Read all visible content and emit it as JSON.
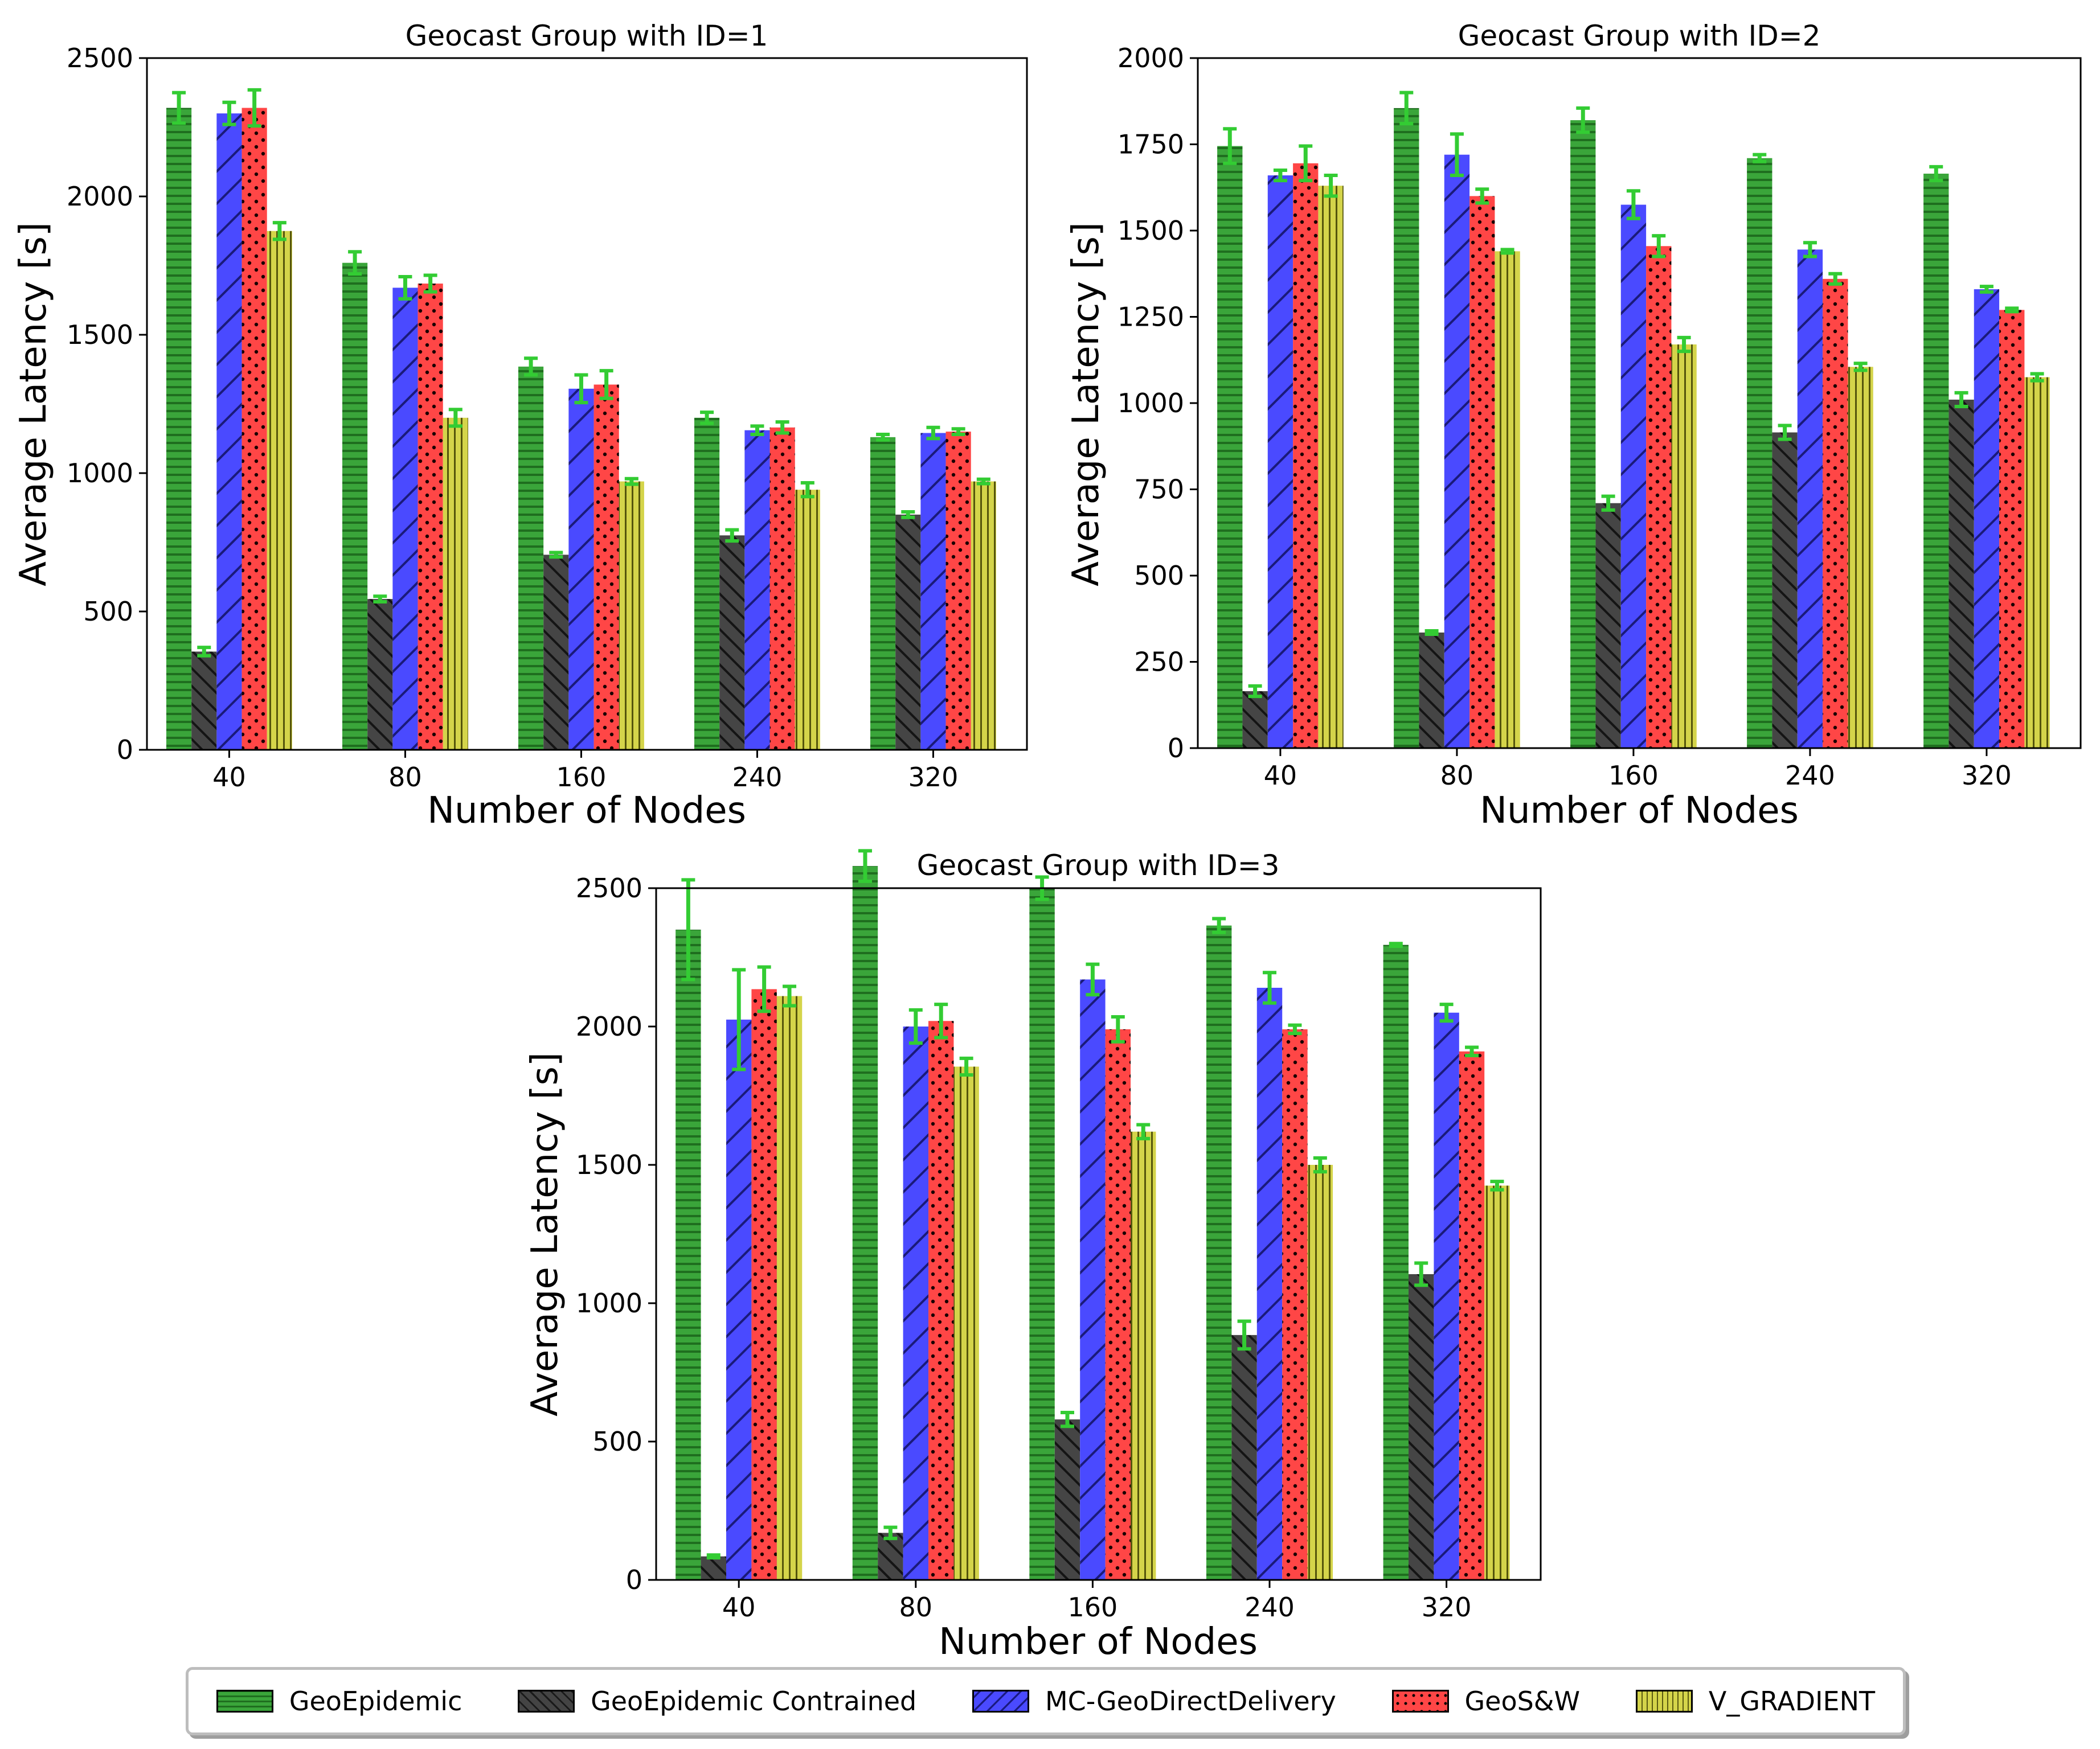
{
  "legend": {
    "items": [
      {
        "label": "GeoEpidemic",
        "color": "#3aa53a"
      },
      {
        "label": "GeoEpidemic Contrained",
        "color": "#444444"
      },
      {
        "label": "MC-GeoDirectDelivery",
        "color": "#4a4aff"
      },
      {
        "label": "GeoS&W",
        "color": "#ff4646"
      },
      {
        "label": "V_GRADIENT",
        "color": "#d4d44a"
      }
    ]
  },
  "chart_data": [
    {
      "type": "bar",
      "title": "Geocast Group with ID=1",
      "xlabel": "Number of Nodes",
      "ylabel": "Average Latency [s]",
      "categories": [
        "40",
        "80",
        "160",
        "240",
        "320"
      ],
      "ylim": [
        0,
        2500
      ],
      "yticks": [
        "0",
        "500",
        "1000",
        "1500",
        "2000",
        "2500"
      ],
      "series": [
        {
          "name": "GeoEpidemic",
          "values": [
            2320,
            1760,
            1385,
            1200,
            1130
          ],
          "errors": [
            55,
            40,
            30,
            20,
            10
          ]
        },
        {
          "name": "GeoEpidemic Contrained",
          "values": [
            355,
            545,
            705,
            775,
            850
          ],
          "errors": [
            15,
            10,
            8,
            20,
            10
          ]
        },
        {
          "name": "MC-GeoDirectDelivery",
          "values": [
            2300,
            1670,
            1305,
            1155,
            1145
          ],
          "errors": [
            40,
            40,
            50,
            15,
            20
          ]
        },
        {
          "name": "GeoS&W",
          "values": [
            2320,
            1685,
            1320,
            1165,
            1150
          ],
          "errors": [
            65,
            30,
            50,
            20,
            10
          ]
        },
        {
          "name": "V_GRADIENT",
          "values": [
            1875,
            1200,
            970,
            940,
            970
          ],
          "errors": [
            30,
            30,
            10,
            25,
            8
          ]
        }
      ]
    },
    {
      "type": "bar",
      "title": "Geocast Group with ID=2",
      "xlabel": "Number of Nodes",
      "ylabel": "Average Latency [s]",
      "categories": [
        "40",
        "80",
        "160",
        "240",
        "320"
      ],
      "ylim": [
        0,
        2000
      ],
      "yticks": [
        "0",
        "250",
        "500",
        "750",
        "1000",
        "1250",
        "1500",
        "1750",
        "2000"
      ],
      "series": [
        {
          "name": "GeoEpidemic",
          "values": [
            1745,
            1855,
            1820,
            1710,
            1665
          ],
          "errors": [
            50,
            45,
            35,
            10,
            20
          ]
        },
        {
          "name": "GeoEpidemic Contrained",
          "values": [
            165,
            335,
            710,
            915,
            1010
          ],
          "errors": [
            15,
            5,
            20,
            20,
            20
          ]
        },
        {
          "name": "MC-GeoDirectDelivery",
          "values": [
            1660,
            1720,
            1575,
            1445,
            1330
          ],
          "errors": [
            15,
            60,
            40,
            20,
            8
          ]
        },
        {
          "name": "GeoS&W",
          "values": [
            1695,
            1600,
            1455,
            1360,
            1270
          ],
          "errors": [
            50,
            20,
            30,
            15,
            5
          ]
        },
        {
          "name": "V_GRADIENT",
          "values": [
            1630,
            1440,
            1170,
            1105,
            1075
          ],
          "errors": [
            30,
            5,
            20,
            10,
            10
          ]
        }
      ]
    },
    {
      "type": "bar",
      "title": "Geocast Group with ID=3",
      "xlabel": "Number of Nodes",
      "ylabel": "Average Latency [s]",
      "categories": [
        "40",
        "80",
        "160",
        "240",
        "320"
      ],
      "ylim": [
        0,
        2500
      ],
      "yticks": [
        "0",
        "500",
        "1000",
        "1500",
        "2000",
        "2500"
      ],
      "series": [
        {
          "name": "GeoEpidemic",
          "values": [
            2350,
            2580,
            2500,
            2365,
            2295
          ],
          "errors": [
            180,
            55,
            40,
            25,
            5
          ]
        },
        {
          "name": "GeoEpidemic Contrained",
          "values": [
            85,
            170,
            580,
            885,
            1105
          ],
          "errors": [
            5,
            20,
            25,
            50,
            40
          ]
        },
        {
          "name": "MC-GeoDirectDelivery",
          "values": [
            2025,
            2000,
            2170,
            2140,
            2050
          ],
          "errors": [
            180,
            60,
            55,
            55,
            30
          ]
        },
        {
          "name": "GeoS&W",
          "values": [
            2135,
            2020,
            1990,
            1990,
            1910
          ],
          "errors": [
            80,
            60,
            45,
            15,
            15
          ]
        },
        {
          "name": "V_GRADIENT",
          "values": [
            2110,
            1855,
            1620,
            1500,
            1425
          ],
          "errors": [
            35,
            30,
            25,
            25,
            15
          ]
        }
      ]
    }
  ]
}
